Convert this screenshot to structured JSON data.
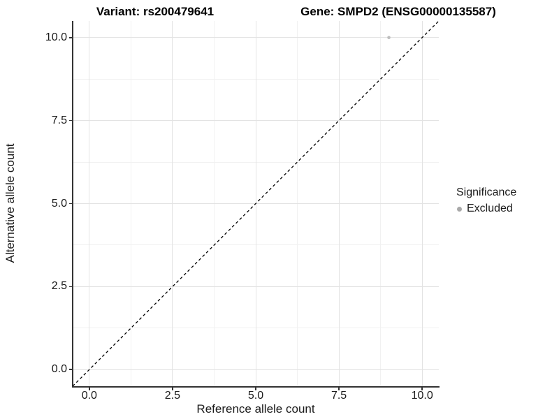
{
  "chart_data": {
    "type": "scatter",
    "title_left": "Variant: rs200479641",
    "title_right": "Gene: SMPD2 (ENSG00000135587)",
    "xlabel": "Reference allele count",
    "ylabel": "Alternative allele count",
    "xlim": [
      -0.5,
      10.5
    ],
    "ylim": [
      -0.5,
      10.5
    ],
    "x_ticks": [
      {
        "value": 0,
        "label": "0.0"
      },
      {
        "value": 2.5,
        "label": "2.5"
      },
      {
        "value": 5,
        "label": "5.0"
      },
      {
        "value": 7.5,
        "label": "7.5"
      },
      {
        "value": 10,
        "label": "10.0"
      }
    ],
    "y_ticks": [
      {
        "value": 0,
        "label": "0.0"
      },
      {
        "value": 2.5,
        "label": "2.5"
      },
      {
        "value": 5,
        "label": "5.0"
      },
      {
        "value": 7.5,
        "label": "7.5"
      },
      {
        "value": 10,
        "label": "10.0"
      }
    ],
    "x_minor": [
      1.25,
      3.75,
      6.25,
      8.75
    ],
    "y_minor": [
      1.25,
      3.75,
      6.25,
      8.75
    ],
    "grid": {
      "major": true,
      "minor": true
    },
    "points": [
      {
        "x": 9,
        "y": 10,
        "series": "Excluded",
        "color": "#BEBEBE",
        "radius": 2.3
      }
    ],
    "reference_line": {
      "slope": 1,
      "intercept": 0,
      "style": "dashed",
      "color": "#000000"
    },
    "legend": {
      "position": "right",
      "title": "Significance",
      "items": [
        {
          "label": "Excluded",
          "color": "#A9A9A9"
        }
      ]
    }
  },
  "colors": {
    "excluded_point": "#BEBEBE",
    "legend_key": "#A9A9A9",
    "grid_major": "#e3e3e3",
    "grid_minor": "#f1f1f1",
    "axis_line": "#333333",
    "reference_line": "#000000"
  }
}
